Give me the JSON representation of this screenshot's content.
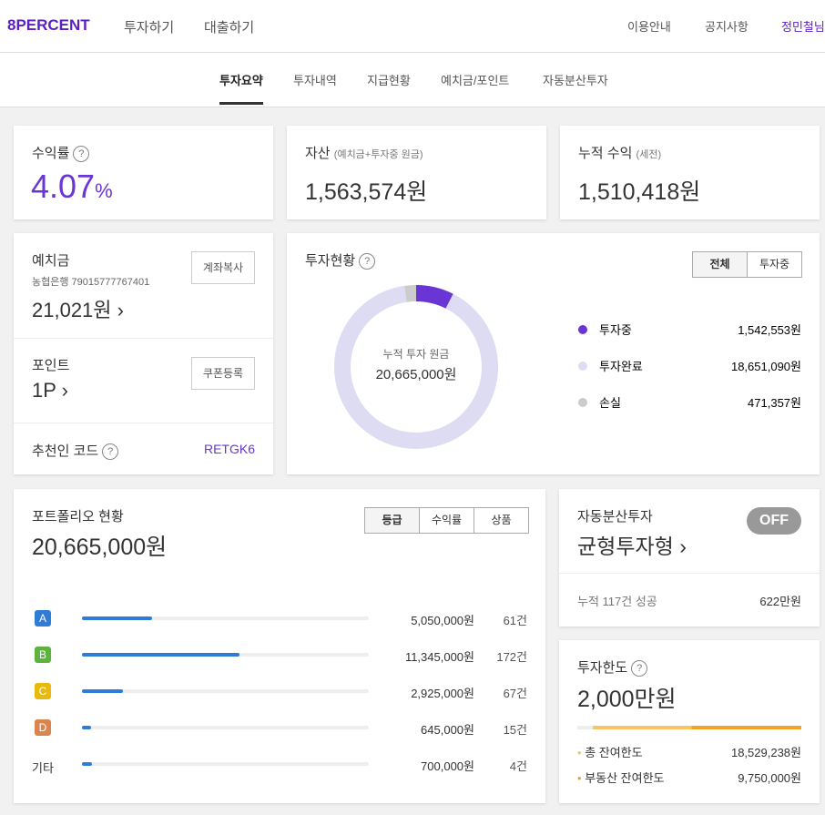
{
  "header": {
    "logo": "8PERCENT",
    "nav": [
      "투자하기",
      "대출하기"
    ],
    "links": [
      "이용안내",
      "공지사항",
      "정민철님"
    ]
  },
  "tabs": {
    "items": [
      "투자요약",
      "투자내역",
      "지급현황",
      "예치금/포인트",
      "자동분산투자"
    ],
    "active": 0
  },
  "summary": {
    "yield": {
      "label": "수익률",
      "value": "4.07",
      "unit": "%"
    },
    "assets": {
      "label": "자산",
      "note": "(예치금+투자중 원금)",
      "value": "1,563,574원"
    },
    "profit": {
      "label": "누적 수익",
      "note": "(세전)",
      "value": "1,510,418원"
    }
  },
  "deposit": {
    "label": "예치금",
    "account": "농협은행 79015777767401",
    "value": "21,021원",
    "button": "계좌복사"
  },
  "point": {
    "label": "포인트",
    "value": "1P",
    "button": "쿠폰등록"
  },
  "referral": {
    "label": "추천인 코드",
    "code": "RETGK6"
  },
  "status": {
    "title": "투자현황",
    "toggle": [
      "전체",
      "투자중"
    ],
    "center_label": "누적 투자 원금",
    "total": {
      "value": 20665000,
      "label": "20,665,000원"
    },
    "segments": [
      {
        "name": "투자중",
        "color": "#6a35d5",
        "amount": {
          "value": 1542553,
          "label": "1,542,553원"
        }
      },
      {
        "name": "투자완료",
        "color": "#dddcf3",
        "amount": {
          "value": 18651090,
          "label": "18,651,090원"
        }
      },
      {
        "name": "손실",
        "color": "#cccccc",
        "amount": {
          "value": 471357,
          "label": "471,357원"
        }
      }
    ]
  },
  "portfolio": {
    "title": "포트폴리오 현황",
    "total": {
      "value": 20665000,
      "label": "20,665,000원"
    },
    "toggle": [
      "등급",
      "수익률",
      "상품"
    ],
    "rows": [
      {
        "grade": "A",
        "color": "#2f7bd8",
        "amount": {
          "value": 5050000,
          "label": "5,050,000원"
        },
        "count": "61건"
      },
      {
        "grade": "B",
        "color": "#5cb43e",
        "amount": {
          "value": 11345000,
          "label": "11,345,000원"
        },
        "count": "172건"
      },
      {
        "grade": "C",
        "color": "#e9b90c",
        "amount": {
          "value": 2925000,
          "label": "2,925,000원"
        },
        "count": "67건"
      },
      {
        "grade": "D",
        "color": "#d98550",
        "amount": {
          "value": 645000,
          "label": "645,000원"
        },
        "count": "15건"
      },
      {
        "grade": "기타",
        "color": null,
        "amount": {
          "value": 700000,
          "label": "700,000원"
        },
        "count": "4건"
      }
    ]
  },
  "auto": {
    "label": "자동분산투자",
    "switch": "OFF",
    "type": "균형투자형",
    "summary": "누적 117건 성공",
    "amount": "622만원"
  },
  "limit": {
    "label": "투자한도",
    "value": "2,000만원",
    "rows": [
      {
        "name": "총 잔여한도",
        "value": "18,529,238원"
      },
      {
        "name": "부동산 잔여한도",
        "value": "9,750,000원"
      }
    ]
  }
}
